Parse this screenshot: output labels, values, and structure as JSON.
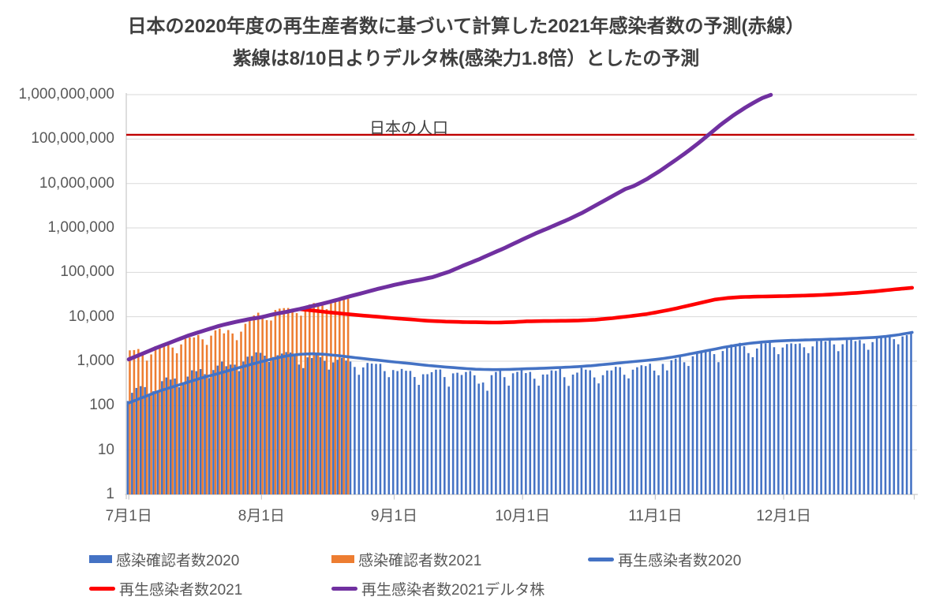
{
  "title": {
    "line1": "日本の2020年度の再生産者数に基づいて計算した2021年感染者数の予測(赤線）",
    "line2": "紫線は8/10日よりデルタ株(感染力1.8倍）としたの予測"
  },
  "annotations": {
    "population_label": "日本の人口"
  },
  "legend": {
    "rows": [
      [
        {
          "label": "感染確認者数2020",
          "type": "rect",
          "color": "#4472C4"
        },
        {
          "label": "感染確認者数2021",
          "type": "rect",
          "color": "#ED7D31"
        },
        {
          "label": "再生感染者数2020",
          "type": "line",
          "color": "#4472C4"
        }
      ],
      [
        {
          "label": "再生感染者数2021",
          "type": "line",
          "color": "#FF0000"
        },
        {
          "label": "再生感染者数2021デルタ株",
          "type": "line",
          "color": "#7030A0"
        }
      ]
    ]
  },
  "chart_data": {
    "type": "bar",
    "subtype": "daily bars + lines on log10 y-scale",
    "grid": "horizontal only",
    "colors": {
      "bar2020": "#4472C4",
      "bar2021": "#ED7D31",
      "line2020": "#4472C4",
      "line2021": "#FF0000",
      "line2021delta": "#7030A0",
      "population": "#C00000",
      "gridline": "#D9D9D9",
      "axis": "#C9C9C9"
    },
    "y_axis": {
      "scale": "log10",
      "min": 1,
      "max": 1000000000,
      "ticks": [
        {
          "label": "1",
          "value": 1
        },
        {
          "label": "10",
          "value": 10
        },
        {
          "label": "100",
          "value": 100
        },
        {
          "label": "1,000",
          "value": 1000
        },
        {
          "label": "10,000",
          "value": 10000
        },
        {
          "label": "100,000",
          "value": 100000
        },
        {
          "label": "1,000,000",
          "value": 1000000
        },
        {
          "label": "10,000,000",
          "value": 10000000
        },
        {
          "label": "100,000,000",
          "value": 100000000
        },
        {
          "label": "1,000,000,000",
          "value": 1000000000
        }
      ]
    },
    "x_axis": {
      "total_days": 184,
      "ticks": [
        {
          "label": "7月1日",
          "day": 0
        },
        {
          "label": "8月1日",
          "day": 31
        },
        {
          "label": "9月1日",
          "day": 62
        },
        {
          "label": "10月1日",
          "day": 92
        },
        {
          "label": "11月1日",
          "day": 123
        },
        {
          "label": "12月1日",
          "day": 153
        }
      ]
    },
    "series": [
      {
        "name": "感染確認者数2020",
        "kind": "bar",
        "color": "#4472C4",
        "start_day": 0,
        "daily_values": [
          127,
          194,
          250,
          274,
          261,
          176,
          211,
          203,
          355,
          430,
          386,
          407,
          260,
          333,
          450,
          623,
          596,
          664,
          511,
          418,
          632,
          795,
          981,
          771,
          838,
          836,
          598,
          981,
          1264,
          1305,
          1580,
          1540,
          1332,
          960,
          1239,
          1360,
          1486,
          1605,
          1565,
          1444,
          839,
          699,
          1222,
          1178,
          1358,
          1232,
          1021,
          645,
          941,
          1076,
          1186,
          1034,
          981,
          741,
          494,
          724,
          915,
          883,
          870,
          871,
          598,
          437,
          632,
          599,
          669,
          608,
          604,
          440,
          293,
          508,
          510,
          565,
          644,
          650,
          439,
          267,
          532,
          550,
          490,
          571,
          601,
          480,
          312,
          331,
          216,
          485,
          571,
          644,
          437,
          281,
          534,
          574,
          647,
          540,
          573,
          403,
          281,
          500,
          503,
          621,
          607,
          675,
          436,
          278,
          499,
          553,
          708,
          644,
          624,
          431,
          316,
          484,
          617,
          619,
          748,
          732,
          495,
          410,
          644,
          731,
          809,
          776,
          877,
          614,
          482,
          868,
          620,
          1050,
          1141,
          1325,
          947,
          780,
          1287,
          1543,
          1661,
          1704,
          1738,
          1441,
          950,
          1693,
          2179,
          2386,
          2418,
          2586,
          2168,
          1520,
          1229,
          1930,
          2499,
          2525,
          2674,
          2066,
          1438,
          2030,
          2430,
          2518,
          2442,
          2508,
          2058,
          1515,
          2152,
          2811,
          2972,
          2788,
          3041,
          2388,
          1680,
          2410,
          2994,
          3211,
          2829,
          2982,
          2501,
          1806,
          2688,
          3271,
          3742,
          3832,
          3881,
          3127,
          2403,
          3607,
          3852,
          4520
        ]
      },
      {
        "name": "感染確認者数2021",
        "kind": "bar",
        "color": "#ED7D31",
        "start_day": 0,
        "daily_values": [
          1754,
          1778,
          1879,
          1484,
          1031,
          1420,
          2180,
          2246,
          2278,
          2458,
          2026,
          1506,
          2386,
          3194,
          3418,
          3423,
          3886,
          3103,
          2329,
          3758,
          4943,
          5397,
          4225,
          5020,
          4204,
          2970,
          4620,
          6966,
          8389,
          10699,
          12342,
          10177,
          8393,
          8234,
          14207,
          15263,
          15645,
          15753,
          14472,
          12073,
          10574,
          15812,
          18892,
          20365,
          20151,
          17832,
          14854,
          19955,
          23917,
          25156,
          25876,
          25492
        ]
      },
      {
        "name": "再生感染者数2020",
        "kind": "line",
        "color": "#4472C4",
        "stroke_width": 3.6,
        "points": [
          [
            0,
            115
          ],
          [
            3,
            150
          ],
          [
            7,
            210
          ],
          [
            10,
            260
          ],
          [
            14,
            340
          ],
          [
            17,
            420
          ],
          [
            21,
            530
          ],
          [
            24,
            640
          ],
          [
            28,
            820
          ],
          [
            31,
            980
          ],
          [
            34,
            1150
          ],
          [
            37,
            1320
          ],
          [
            40,
            1430
          ],
          [
            43,
            1470
          ],
          [
            46,
            1420
          ],
          [
            49,
            1330
          ],
          [
            52,
            1230
          ],
          [
            55,
            1140
          ],
          [
            58,
            1060
          ],
          [
            62,
            960
          ],
          [
            66,
            880
          ],
          [
            70,
            800
          ],
          [
            74,
            740
          ],
          [
            78,
            690
          ],
          [
            81,
            660
          ],
          [
            85,
            645
          ],
          [
            88,
            650
          ],
          [
            92,
            670
          ],
          [
            96,
            690
          ],
          [
            100,
            715
          ],
          [
            104,
            745
          ],
          [
            108,
            790
          ],
          [
            112,
            860
          ],
          [
            116,
            940
          ],
          [
            120,
            1020
          ],
          [
            124,
            1120
          ],
          [
            127,
            1230
          ],
          [
            130,
            1390
          ],
          [
            133,
            1580
          ],
          [
            136,
            1800
          ],
          [
            139,
            2050
          ],
          [
            142,
            2300
          ],
          [
            145,
            2520
          ],
          [
            148,
            2700
          ],
          [
            151,
            2830
          ],
          [
            154,
            2920
          ],
          [
            158,
            3000
          ],
          [
            162,
            3080
          ],
          [
            166,
            3170
          ],
          [
            170,
            3280
          ],
          [
            174,
            3420
          ],
          [
            177,
            3620
          ],
          [
            180,
            3950
          ],
          [
            183,
            4450
          ]
        ]
      },
      {
        "name": "再生感染者数2021",
        "kind": "line",
        "color": "#FF0000",
        "stroke_width": 4.6,
        "points": [
          [
            40,
            14800
          ],
          [
            43,
            13800
          ],
          [
            46,
            12800
          ],
          [
            49,
            12000
          ],
          [
            53,
            11000
          ],
          [
            57,
            10200
          ],
          [
            62,
            9300
          ],
          [
            66,
            8700
          ],
          [
            70,
            8100
          ],
          [
            74,
            7800
          ],
          [
            78,
            7600
          ],
          [
            82,
            7500
          ],
          [
            86,
            7400
          ],
          [
            90,
            7600
          ],
          [
            93,
            7900
          ],
          [
            97,
            8000
          ],
          [
            101,
            8100
          ],
          [
            105,
            8200
          ],
          [
            109,
            8600
          ],
          [
            113,
            9300
          ],
          [
            117,
            10300
          ],
          [
            121,
            11500
          ],
          [
            125,
            13500
          ],
          [
            128,
            15500
          ],
          [
            131,
            18000
          ],
          [
            134,
            21000
          ],
          [
            137,
            24500
          ],
          [
            140,
            26500
          ],
          [
            143,
            27800
          ],
          [
            146,
            28300
          ],
          [
            150,
            28800
          ],
          [
            154,
            29300
          ],
          [
            158,
            30000
          ],
          [
            162,
            31000
          ],
          [
            166,
            32500
          ],
          [
            170,
            34500
          ],
          [
            174,
            37000
          ],
          [
            178,
            40500
          ],
          [
            183,
            45000
          ]
        ]
      },
      {
        "name": "再生感染者数2021デルタ株",
        "kind": "line",
        "color": "#7030A0",
        "stroke_width": 5,
        "points": [
          [
            0,
            1100
          ],
          [
            3,
            1450
          ],
          [
            7,
            2100
          ],
          [
            10,
            2700
          ],
          [
            14,
            3800
          ],
          [
            17,
            4700
          ],
          [
            21,
            6200
          ],
          [
            24,
            7300
          ],
          [
            28,
            8800
          ],
          [
            31,
            9800
          ],
          [
            34,
            11500
          ],
          [
            37,
            13000
          ],
          [
            40,
            15000
          ],
          [
            43,
            17500
          ],
          [
            46,
            20500
          ],
          [
            49,
            24500
          ],
          [
            52,
            29500
          ],
          [
            55,
            35000
          ],
          [
            58,
            42000
          ],
          [
            62,
            52000
          ],
          [
            65,
            60000
          ],
          [
            68,
            68000
          ],
          [
            71,
            78000
          ],
          [
            75,
            105000
          ],
          [
            78,
            140000
          ],
          [
            82,
            200000
          ],
          [
            85,
            270000
          ],
          [
            88,
            360000
          ],
          [
            92,
            550000
          ],
          [
            95,
            750000
          ],
          [
            97,
            900000
          ],
          [
            100,
            1200000
          ],
          [
            103,
            1600000
          ],
          [
            106,
            2200000
          ],
          [
            110,
            3600000
          ],
          [
            113,
            5200000
          ],
          [
            116,
            7500000
          ],
          [
            118,
            8800000
          ],
          [
            121,
            12500000
          ],
          [
            124,
            19000000
          ],
          [
            127,
            30000000
          ],
          [
            130,
            48000000
          ],
          [
            133,
            80000000
          ],
          [
            135,
            115000000
          ],
          [
            138,
            200000000
          ],
          [
            141,
            330000000
          ],
          [
            144,
            510000000
          ],
          [
            146,
            660000000
          ],
          [
            148,
            840000000
          ],
          [
            150,
            990000000
          ]
        ]
      },
      {
        "name": "日本の人口",
        "kind": "hline",
        "color": "#C00000",
        "stroke_width": 2.4,
        "value": 125000000
      }
    ]
  }
}
